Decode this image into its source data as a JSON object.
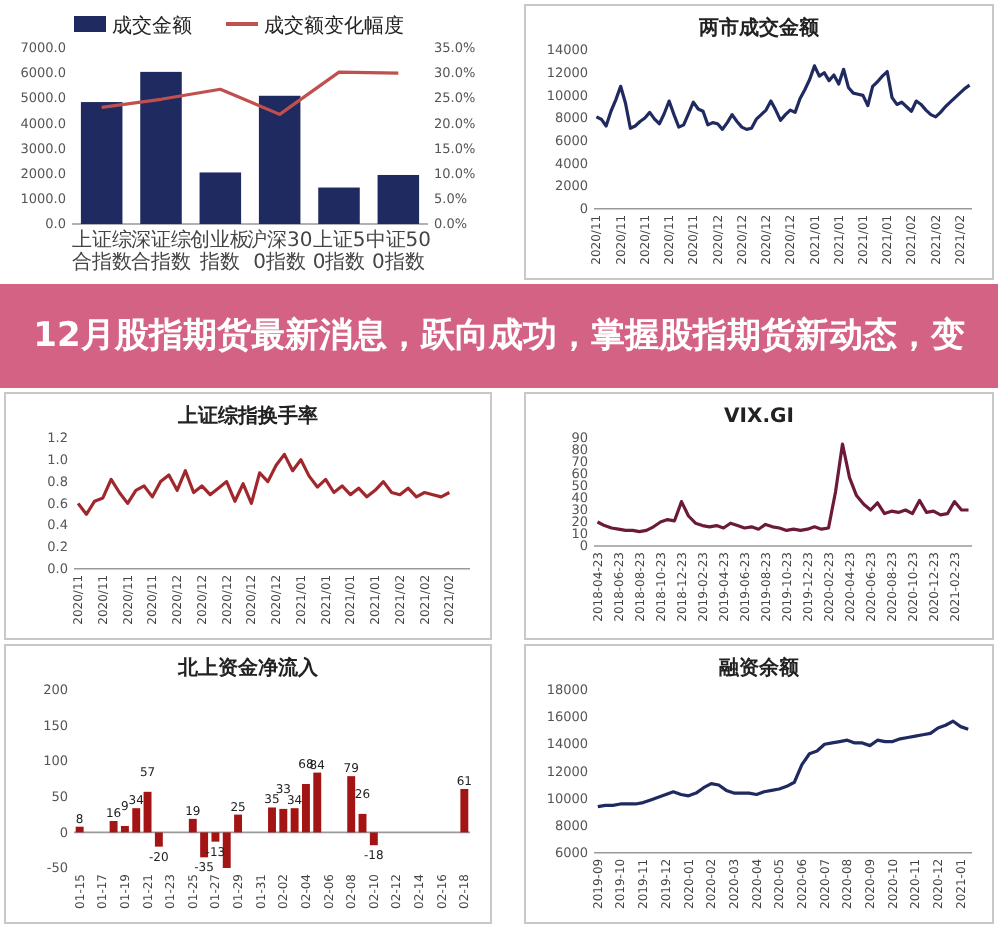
{
  "chart_data": [
    {
      "type": "bar",
      "categories": [
        "上证综合指数",
        "深证综合指数",
        "创业板指数",
        "沪深300指数",
        "上证50指数",
        "中证500指数"
      ],
      "series": [
        {
          "name": "成交金额",
          "type": "bar",
          "color": "#1f2a60",
          "values": [
            4850,
            6050,
            2050,
            5100,
            1450,
            1950
          ]
        },
        {
          "name": "成交额变化幅度",
          "type": "line",
          "axis": "y2",
          "color": "#c0504d",
          "values": [
            23.2,
            24.8,
            26.8,
            21.8,
            30.2,
            30.0
          ]
        }
      ],
      "ylim": [
        0,
        7000
      ],
      "yticks": [
        {
          "value": 0,
          "label": "0.0"
        },
        {
          "value": 1000,
          "label": "1000.0"
        },
        {
          "value": 2000,
          "label": "2000.0"
        },
        {
          "value": 3000,
          "label": "3000.0"
        },
        {
          "value": 4000,
          "label": "4000.0"
        },
        {
          "value": 5000,
          "label": "5000.0"
        },
        {
          "value": 6000,
          "label": "6000.0"
        },
        {
          "value": 7000,
          "label": "7000.0"
        }
      ],
      "y2lim": [
        0,
        35
      ],
      "y2ticks": [
        {
          "value": 0,
          "label": "0.0%"
        },
        {
          "value": 5,
          "label": "5.0%"
        },
        {
          "value": 10,
          "label": "10.0%"
        },
        {
          "value": 15,
          "label": "15.0%"
        },
        {
          "value": 20,
          "label": "20.0%"
        },
        {
          "value": 25,
          "label": "25.0%"
        },
        {
          "value": 30,
          "label": "30.0%"
        },
        {
          "value": 35,
          "label": "35.0%"
        }
      ],
      "legend": "top"
    },
    {
      "type": "line",
      "title": "两市成交金额",
      "categories": [
        "2020/11",
        null,
        null,
        null,
        null,
        "2020/11",
        null,
        null,
        null,
        null,
        "2020/11",
        null,
        null,
        null,
        null,
        "2020/11",
        null,
        null,
        null,
        null,
        "2020/11",
        null,
        null,
        null,
        null,
        "2020/12",
        null,
        null,
        null,
        null,
        "2020/12",
        null,
        null,
        null,
        null,
        "2020/12",
        null,
        null,
        null,
        null,
        "2020/12",
        null,
        null,
        null,
        null,
        "2021/01",
        null,
        null,
        null,
        null,
        "2021/01",
        null,
        null,
        null,
        null,
        "2021/01",
        null,
        null,
        null,
        null,
        "2021/01",
        null,
        null,
        null,
        null,
        "2021/02",
        null,
        null,
        null,
        null,
        "2021/02",
        null,
        null,
        null,
        null,
        "2021/02",
        null,
        null
      ],
      "series": [
        {
          "color": "#1f2a60",
          "values": [
            8100,
            7900,
            7300,
            8600,
            9600,
            10800,
            9300,
            7100,
            7300,
            7700,
            8000,
            8500,
            7900,
            7500,
            8400,
            9500,
            8300,
            7200,
            7400,
            8400,
            9400,
            8800,
            8600,
            7400,
            7600,
            7500,
            7000,
            7600,
            8300,
            7700,
            7200,
            7000,
            7100,
            7900,
            8300,
            8700,
            9500,
            8700,
            7800,
            8300,
            8700,
            8500,
            9700,
            10500,
            11400,
            12600,
            11700,
            12000,
            11300,
            11800,
            11000,
            12300,
            10700,
            10200,
            10100,
            10000,
            9100,
            10800,
            11200,
            11700,
            12100,
            9800,
            9200,
            9400,
            9000,
            8600,
            9500,
            9200,
            8700,
            8300,
            8100,
            8500,
            9000,
            9400,
            9800,
            10200,
            10600,
            10900
          ]
        }
      ],
      "ylim": [
        0,
        14000
      ],
      "yticks": [
        0,
        2000,
        4000,
        6000,
        8000,
        10000,
        12000,
        14000
      ]
    },
    {
      "type": "line",
      "title": "上证综指换手率",
      "categories": [
        "2020/11",
        null,
        null,
        "2020/11",
        null,
        null,
        "2020/11",
        null,
        null,
        "2020/11",
        null,
        null,
        "2020/12",
        null,
        null,
        "2020/12",
        null,
        null,
        "2020/12",
        null,
        null,
        "2020/12",
        null,
        null,
        "2020/12",
        null,
        null,
        "2021/01",
        null,
        null,
        "2021/01",
        null,
        null,
        "2021/01",
        null,
        null,
        "2021/01",
        null,
        null,
        "2021/02",
        null,
        null,
        "2021/02",
        null,
        null,
        "2021/02",
        null,
        null
      ],
      "series": [
        {
          "color": "#a0282d",
          "values": [
            0.6,
            0.5,
            0.62,
            0.65,
            0.82,
            0.7,
            0.6,
            0.72,
            0.76,
            0.66,
            0.8,
            0.86,
            0.72,
            0.9,
            0.7,
            0.76,
            0.68,
            0.74,
            0.8,
            0.62,
            0.78,
            0.6,
            0.88,
            0.8,
            0.95,
            1.05,
            0.9,
            1.0,
            0.85,
            0.75,
            0.82,
            0.7,
            0.76,
            0.68,
            0.74,
            0.66,
            0.72,
            0.8,
            0.7,
            0.68,
            0.74,
            0.66,
            0.7,
            0.68,
            0.66,
            0.7,
            null,
            null
          ]
        }
      ],
      "ylim": [
        0,
        1.2
      ],
      "yticks": [
        {
          "value": 0,
          "label": "0.0"
        },
        {
          "value": 0.2,
          "label": "0.2"
        },
        {
          "value": 0.4,
          "label": "0.4"
        },
        {
          "value": 0.6,
          "label": "0.6"
        },
        {
          "value": 0.8,
          "label": "0.8"
        },
        {
          "value": 1,
          "label": "1.0"
        },
        {
          "value": 1.2,
          "label": "1.2"
        }
      ]
    },
    {
      "type": "line",
      "title": "VIX.GI",
      "categories": [
        "2018-04-23",
        null,
        null,
        "2018-06-23",
        null,
        null,
        "2018-08-23",
        null,
        null,
        "2018-10-23",
        null,
        null,
        "2018-12-23",
        null,
        null,
        "2019-02-23",
        null,
        null,
        "2019-04-23",
        null,
        null,
        "2019-06-23",
        null,
        null,
        "2019-08-23",
        null,
        null,
        "2019-10-23",
        null,
        null,
        "2019-12-23",
        null,
        null,
        "2020-02-23",
        null,
        null,
        "2020-04-23",
        null,
        null,
        "2020-06-23",
        null,
        null,
        "2020-08-23",
        null,
        null,
        "2020-10-23",
        null,
        null,
        "2020-12-23",
        null,
        null,
        "2021-02-23",
        null,
        null
      ],
      "series": [
        {
          "color": "#6b1a3a",
          "values": [
            20,
            17,
            15,
            14,
            13,
            13,
            12,
            13,
            16,
            20,
            22,
            21,
            37,
            25,
            19,
            17,
            16,
            17,
            15,
            19,
            17,
            15,
            16,
            14,
            18,
            16,
            15,
            13,
            14,
            13,
            14,
            16,
            14,
            15,
            45,
            85,
            57,
            42,
            35,
            30,
            36,
            27,
            29,
            28,
            30,
            27,
            38,
            28,
            29,
            26,
            27,
            37,
            30,
            30
          ]
        }
      ],
      "ylim": [
        0,
        90
      ],
      "yticks": [
        0,
        10,
        20,
        30,
        40,
        50,
        60,
        70,
        80,
        90
      ]
    },
    {
      "type": "bar",
      "title": "北上资金净流入",
      "categories": [
        "01-15",
        null,
        "01-17",
        null,
        "01-19",
        null,
        "01-21",
        null,
        "01-23",
        null,
        "01-25",
        null,
        "01-27",
        null,
        "01-29",
        null,
        "01-31",
        null,
        "02-02",
        null,
        "02-04",
        null,
        "02-06",
        null,
        "02-08",
        null,
        "02-10",
        null,
        "02-12",
        null,
        "02-14",
        null,
        "02-16",
        null,
        "02-18"
      ],
      "series": [
        {
          "color": "#a31515",
          "values": [
            8,
            null,
            null,
            16,
            9,
            34,
            57,
            -20,
            null,
            null,
            19,
            -35,
            -13,
            -50,
            25,
            null,
            null,
            35,
            33,
            34,
            68,
            84,
            null,
            null,
            79,
            26,
            -18,
            null,
            null,
            null,
            null,
            null,
            null,
            null,
            61
          ],
          "value_labels": [
            "8",
            null,
            null,
            "16",
            "9",
            "34",
            "57",
            "-20",
            null,
            null,
            "19",
            "-35",
            "-13",
            null,
            "25",
            null,
            null,
            "35",
            "33",
            "34",
            "68",
            "84",
            null,
            null,
            "79",
            "26",
            "-18",
            null,
            null,
            null,
            null,
            null,
            null,
            null,
            "61"
          ]
        }
      ],
      "ylim": [
        -50,
        200
      ],
      "yticks": [
        -50,
        0,
        50,
        100,
        150,
        200
      ]
    },
    {
      "type": "line",
      "title": "融资余额",
      "categories": [
        "2019-09",
        null,
        null,
        "2019-10",
        null,
        null,
        "2019-11",
        null,
        null,
        "2019-12",
        null,
        null,
        "2020-01",
        null,
        null,
        "2020-02",
        null,
        null,
        "2020-03",
        null,
        null,
        "2020-04",
        null,
        null,
        "2020-05",
        null,
        null,
        "2020-06",
        null,
        null,
        "2020-07",
        null,
        null,
        "2020-08",
        null,
        null,
        "2020-09",
        null,
        null,
        "2020-10",
        null,
        null,
        "2020-11",
        null,
        null,
        "2020-12",
        null,
        null,
        "2021-01",
        null
      ],
      "series": [
        {
          "color": "#1f2a60",
          "values": [
            9400,
            9500,
            9500,
            9600,
            9600,
            9600,
            9700,
            9900,
            10100,
            10300,
            10500,
            10300,
            10200,
            10400,
            10800,
            11100,
            11000,
            10600,
            10400,
            10400,
            10400,
            10300,
            10500,
            10600,
            10700,
            10900,
            11200,
            12500,
            13300,
            13500,
            14000,
            14100,
            14200,
            14300,
            14100,
            14100,
            13900,
            14300,
            14200,
            14200,
            14400,
            14500,
            14600,
            14700,
            14800,
            15200,
            15400,
            15700,
            15300,
            15100
          ]
        }
      ],
      "ylim": [
        6000,
        18000
      ],
      "yticks": [
        6000,
        8000,
        10000,
        12000,
        14000,
        16000,
        18000
      ]
    },
    {
      "type": "other",
      "title": "12月股指期货最新消息，跃向成功，掌握股指期货新动态，变"
    }
  ]
}
